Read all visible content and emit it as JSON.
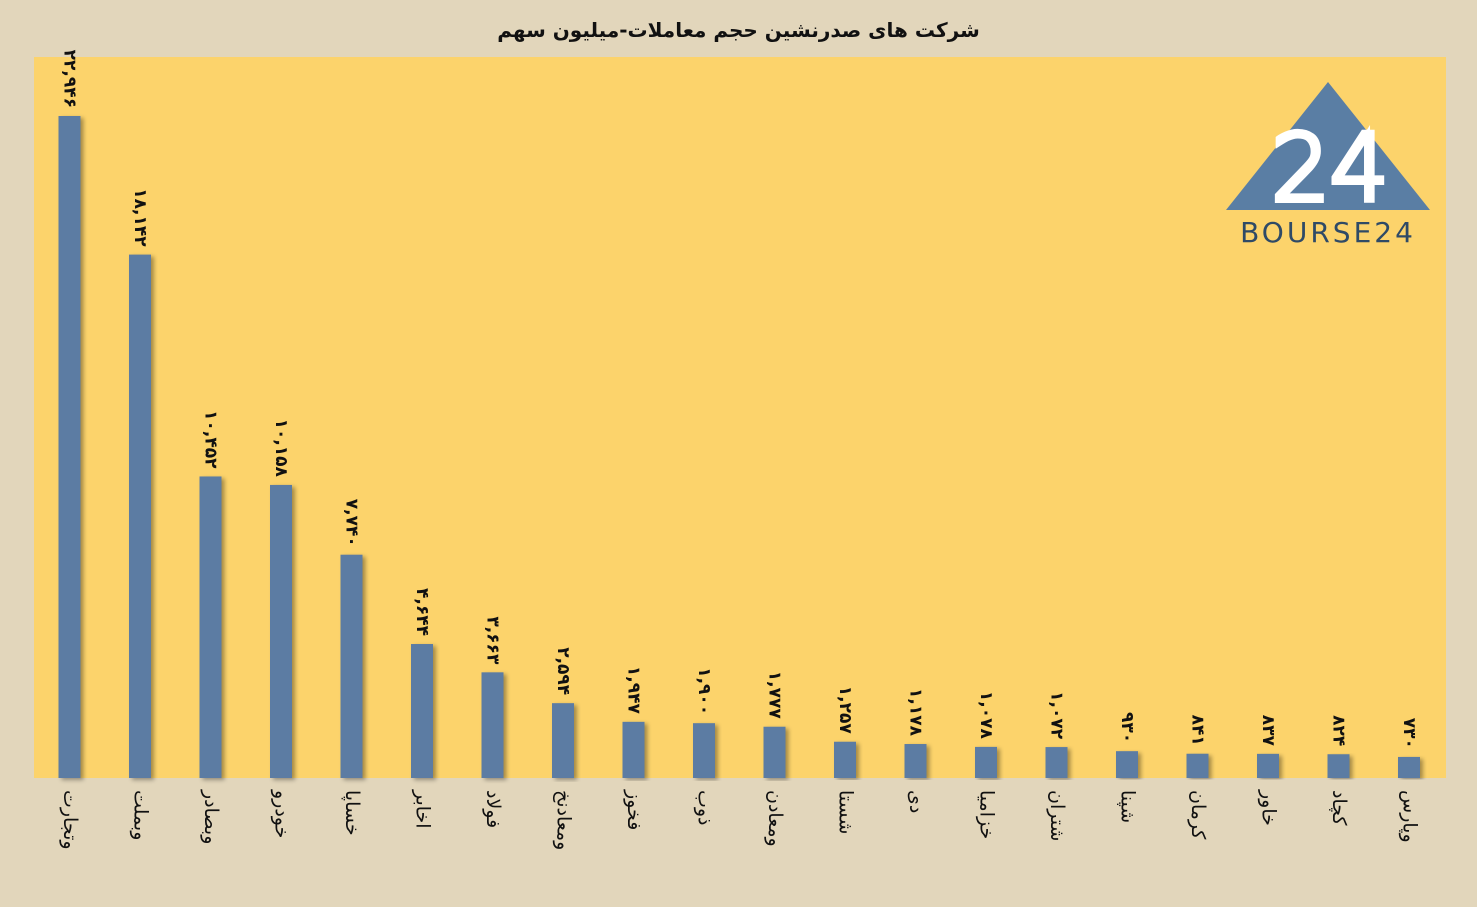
{
  "title": "شرکت های صدرنشین حجم معاملات-میلیون سهم",
  "logo": {
    "text": "BOURSE24",
    "mark": "24",
    "color": "#5a7ea4"
  },
  "colors": {
    "bar": "#5b7ca3",
    "plot_bg": "#fcd36b",
    "page_bg": "#e2d6bb"
  },
  "chart_data": {
    "type": "bar",
    "title": "شرکت های صدرنشین حجم معاملات-میلیون سهم",
    "categories": [
      "وتجارت",
      "وبملت",
      "وبصادر",
      "خودرو",
      "خساپا",
      "اخابر",
      "فولاد",
      "ومعادنخ",
      "فخوز",
      "ذوب",
      "ومعادن",
      "شستا",
      "دی",
      "خزامیا",
      "شتران",
      "شپنا",
      "کرمان",
      "خاور",
      "کچاد",
      "وپارس"
    ],
    "values": [
      22946,
      18142,
      10452,
      10158,
      7740,
      4644,
      3663,
      2594,
      1947,
      1900,
      1777,
      1257,
      1178,
      1078,
      1072,
      930,
      841,
      837,
      824,
      730
    ],
    "data_labels": [
      "۲۲,۹۴۶",
      "۱۸,۱۴۲",
      "۱۰,۴۵۲",
      "۱۰,۱۵۸",
      "۷,۷۴۰",
      "۴,۶۴۴",
      "۳,۶۶۳",
      "۲,۵۹۴",
      "۱,۹۴۷",
      "۱,۹۰۰",
      "۱,۷۷۷",
      "۱,۲۵۷",
      "۱,۱۷۸",
      "۱,۰۷۸",
      "۱,۰۷۲",
      "۹۳۰",
      "۸۴۱",
      "۸۳۷",
      "۸۲۴",
      "۷۳۰"
    ],
    "ylim": [
      0,
      25000
    ],
    "grid": false,
    "legend": "none"
  }
}
